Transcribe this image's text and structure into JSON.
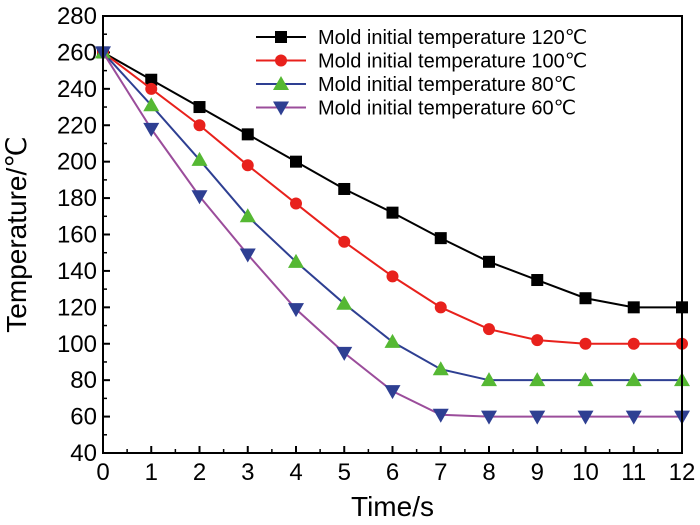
{
  "chart_data": {
    "type": "line",
    "title": "",
    "xlabel": "Time/s",
    "ylabel": "Temperature/℃",
    "xlim": [
      0,
      12
    ],
    "ylim": [
      40,
      280
    ],
    "xticks": [
      0,
      1,
      2,
      3,
      4,
      5,
      6,
      7,
      8,
      9,
      10,
      11,
      12
    ],
    "yticks": [
      40,
      60,
      80,
      100,
      120,
      140,
      160,
      180,
      200,
      220,
      240,
      260,
      280
    ],
    "grid": false,
    "legend_position": "top-right",
    "x": [
      0,
      1,
      2,
      3,
      4,
      5,
      6,
      7,
      8,
      9,
      10,
      11,
      12
    ],
    "series": [
      {
        "name": "Mold initial temperature 120℃",
        "color": "#000000",
        "marker": "square",
        "values": [
          260,
          245,
          230,
          215,
          200,
          185,
          172,
          158,
          145,
          135,
          125,
          120,
          120
        ]
      },
      {
        "name": "Mold initial temperature 100℃",
        "color": "#e8211c",
        "marker": "circle",
        "values": [
          260,
          240,
          220,
          198,
          177,
          156,
          137,
          120,
          108,
          102,
          100,
          100,
          100
        ]
      },
      {
        "name": "Mold initial temperature 80℃",
        "color": "#2e3f92",
        "marker": "triangle-up",
        "marker_color": "#55b833",
        "values": [
          260,
          231,
          201,
          170,
          145,
          122,
          101,
          86,
          80,
          80,
          80,
          80,
          80
        ]
      },
      {
        "name": "Mold initial temperature 60℃",
        "color": "#9b4d9b",
        "marker": "triangle-down",
        "marker_color": "#2e3f92",
        "values": [
          260,
          218,
          181,
          149,
          119,
          95,
          74,
          61,
          60,
          60,
          60,
          60,
          60
        ]
      }
    ]
  }
}
